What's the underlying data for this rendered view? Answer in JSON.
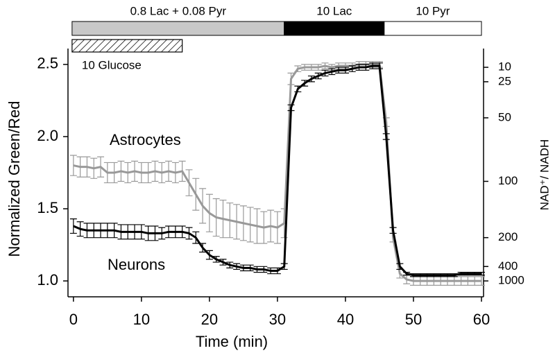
{
  "chart_data": {
    "type": "line",
    "xlabel": "Time (min)",
    "ylabel": "Normalized Green/Red",
    "y2label": "NAD⁺/ NADH",
    "xlim": [
      -0.8,
      60
    ],
    "xticks": [
      0,
      10,
      20,
      30,
      40,
      50,
      60
    ],
    "ylim": [
      0.89,
      2.61
    ],
    "yticks": [
      {
        "value": 1,
        "label": "1.0"
      },
      1.5,
      {
        "value": 2,
        "label": "2.0"
      },
      2.5
    ],
    "y2ticks": [
      10,
      25,
      50,
      100,
      200,
      400,
      1000
    ],
    "y2tick_positions": [
      2.48,
      2.38,
      2.13,
      1.69,
      1.3,
      1.1,
      1.0
    ],
    "conditions": [
      {
        "label": "0.8 Lac + 0.08 Pyr",
        "start": -0.2,
        "end": 31,
        "color": "#c8c8c8"
      },
      {
        "label": "10 Lac",
        "start": 31,
        "end": 45.7,
        "color": "#000000"
      },
      {
        "label": "10 Pyr",
        "start": 45.7,
        "end": 60,
        "color": "#ffffff"
      }
    ],
    "treatment": {
      "label": "10 Glucose",
      "start": -0.2,
      "end": 16
    },
    "x": [
      0,
      1,
      2,
      3,
      4,
      5,
      6,
      7,
      8,
      9,
      10,
      11,
      12,
      13,
      14,
      15,
      16,
      17,
      18,
      19,
      20,
      21,
      22,
      23,
      24,
      25,
      26,
      27,
      28,
      29,
      30,
      31,
      32,
      33,
      34,
      35,
      36,
      37,
      38,
      39,
      40,
      41,
      42,
      43,
      44,
      45,
      46,
      47,
      48,
      49,
      50,
      51,
      52,
      53,
      54,
      55,
      56,
      57,
      58,
      59,
      60
    ],
    "series": [
      {
        "name": "Astrocytes",
        "color": "#999999",
        "values": [
          1.8,
          1.79,
          1.79,
          1.78,
          1.79,
          1.75,
          1.75,
          1.76,
          1.75,
          1.76,
          1.75,
          1.75,
          1.76,
          1.75,
          1.76,
          1.75,
          1.76,
          1.68,
          1.6,
          1.52,
          1.47,
          1.44,
          1.43,
          1.42,
          1.41,
          1.4,
          1.39,
          1.38,
          1.37,
          1.38,
          1.37,
          1.4,
          2.4,
          2.47,
          2.48,
          2.48,
          2.48,
          2.49,
          2.48,
          2.49,
          2.49,
          2.49,
          2.5,
          2.5,
          2.5,
          2.5,
          2.1,
          1.3,
          1.05,
          1.01,
          1.0,
          1.0,
          1.0,
          1.0,
          1.0,
          1.0,
          1.0,
          1.0,
          1.0,
          1.0,
          1.0
        ],
        "errors": [
          0.07,
          0.07,
          0.07,
          0.07,
          0.07,
          0.07,
          0.07,
          0.07,
          0.07,
          0.07,
          0.07,
          0.07,
          0.07,
          0.07,
          0.07,
          0.07,
          0.07,
          0.09,
          0.11,
          0.12,
          0.13,
          0.13,
          0.13,
          0.12,
          0.12,
          0.12,
          0.12,
          0.12,
          0.11,
          0.11,
          0.11,
          0.1,
          0.04,
          0.02,
          0.02,
          0.02,
          0.02,
          0.02,
          0.02,
          0.02,
          0.02,
          0.02,
          0.02,
          0.02,
          0.02,
          0.02,
          0.03,
          0.03,
          0.03,
          0.03,
          0.03,
          0.03,
          0.03,
          0.03,
          0.03,
          0.03,
          0.03,
          0.03,
          0.03,
          0.03,
          0.03
        ]
      },
      {
        "name": "Neurons",
        "color": "#000000",
        "values": [
          1.38,
          1.36,
          1.35,
          1.35,
          1.35,
          1.35,
          1.35,
          1.34,
          1.34,
          1.34,
          1.34,
          1.33,
          1.33,
          1.33,
          1.34,
          1.34,
          1.34,
          1.33,
          1.3,
          1.23,
          1.18,
          1.15,
          1.13,
          1.11,
          1.1,
          1.09,
          1.09,
          1.08,
          1.08,
          1.07,
          1.07,
          1.1,
          2.2,
          2.33,
          2.37,
          2.4,
          2.42,
          2.44,
          2.45,
          2.46,
          2.46,
          2.47,
          2.48,
          2.48,
          2.49,
          2.49,
          2.0,
          1.35,
          1.1,
          1.05,
          1.04,
          1.04,
          1.04,
          1.04,
          1.04,
          1.04,
          1.04,
          1.05,
          1.05,
          1.05,
          1.05
        ],
        "errors": [
          0.05,
          0.05,
          0.05,
          0.05,
          0.05,
          0.05,
          0.05,
          0.05,
          0.05,
          0.05,
          0.05,
          0.05,
          0.05,
          0.04,
          0.04,
          0.04,
          0.04,
          0.04,
          0.04,
          0.03,
          0.03,
          0.02,
          0.02,
          0.02,
          0.02,
          0.02,
          0.02,
          0.02,
          0.02,
          0.02,
          0.02,
          0.02,
          0.02,
          0.02,
          0.02,
          0.02,
          0.02,
          0.02,
          0.02,
          0.02,
          0.02,
          0.02,
          0.02,
          0.02,
          0.02,
          0.02,
          0.02,
          0.02,
          0.02,
          0.01,
          0.01,
          0.01,
          0.01,
          0.01,
          0.01,
          0.01,
          0.01,
          0.01,
          0.01,
          0.01,
          0.01
        ]
      }
    ]
  }
}
